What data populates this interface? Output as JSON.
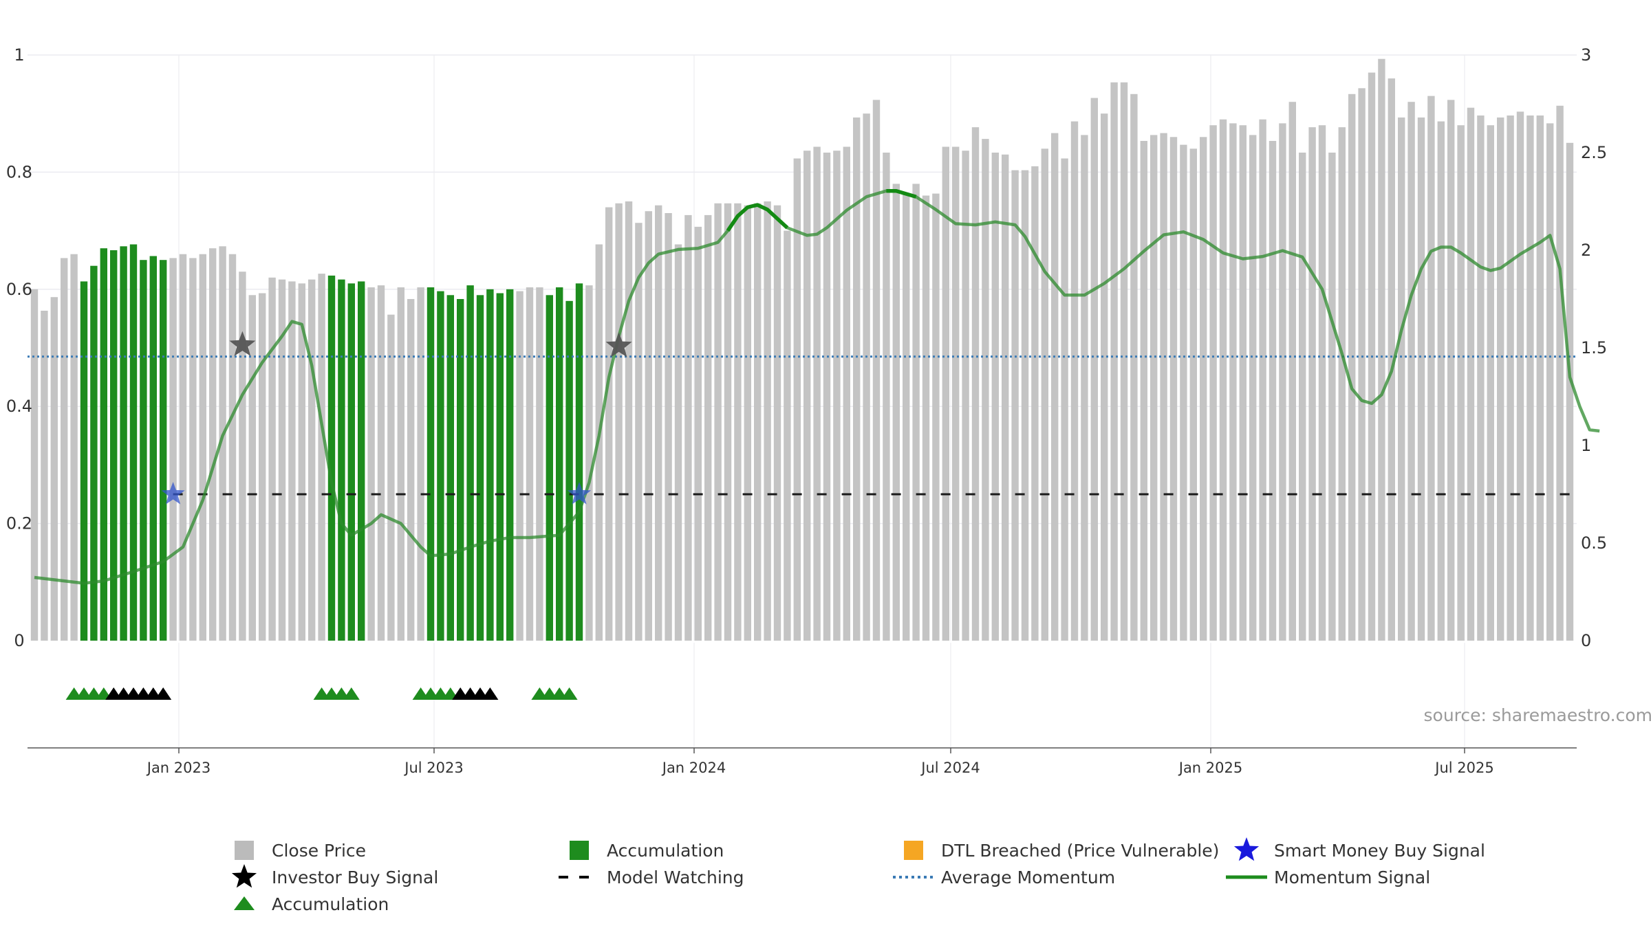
{
  "chart_data": {
    "type": "bar",
    "source_text": "source: sharemaestro.com",
    "left_axis": {
      "ylim": [
        0,
        1
      ],
      "ticks": [
        "0",
        "0.2",
        "0.4",
        "0.6",
        "0.8",
        "1"
      ]
    },
    "right_axis": {
      "ylim": [
        0,
        3
      ],
      "ticks": [
        "0",
        "0.5",
        "1",
        "1.5",
        "2",
        "2.5",
        "3"
      ]
    },
    "x_ticks": [
      "Jan 2023",
      "Jul 2023",
      "Jan 2024",
      "Jul 2024",
      "Jan 2025",
      "Jul 2025"
    ],
    "grid": true,
    "legend_placement": "bottom",
    "legend": [
      {
        "label": "Close Price",
        "marker": "gray-square",
        "color": "#bbbbbb"
      },
      {
        "label": "Accumulation",
        "marker": "green-square",
        "color": "#1e8c1e"
      },
      {
        "label": "DTL Breached (Price Vulnerable)",
        "marker": "orange-square",
        "color": "#f5a623"
      },
      {
        "label": "Smart Money Buy Signal",
        "marker": "blue-star",
        "color": "#1a1adc"
      },
      {
        "label": "Investor Buy Signal",
        "marker": "black-star",
        "color": "#000000"
      },
      {
        "label": "Model Watching",
        "marker": "dashed-line",
        "color": "#000000"
      },
      {
        "label": "Average Momentum",
        "marker": "dotted-line",
        "color": "#3a7ab5"
      },
      {
        "label": "Momentum Signal",
        "marker": "solid-line",
        "color": "#1e8c1e"
      },
      {
        "label": "Accumulation",
        "marker": "green-triangle",
        "color": "#1e8c1e"
      }
    ],
    "close_price": [
      1.8,
      1.69,
      1.76,
      1.96,
      1.98,
      1.84,
      1.92,
      2.01,
      2.0,
      2.02,
      2.03,
      1.95,
      1.97,
      1.95,
      1.96,
      1.98,
      1.96,
      1.98,
      2.01,
      2.02,
      1.98,
      1.89,
      1.77,
      1.78,
      1.86,
      1.85,
      1.84,
      1.83,
      1.85,
      1.88,
      1.87,
      1.85,
      1.83,
      1.84,
      1.81,
      1.82,
      1.67,
      1.81,
      1.75,
      1.81,
      1.81,
      1.79,
      1.77,
      1.75,
      1.82,
      1.77,
      1.8,
      1.78,
      1.8,
      1.79,
      1.81,
      1.81,
      1.77,
      1.81,
      1.74,
      1.83,
      1.82,
      2.03,
      2.22,
      2.24,
      2.25,
      2.14,
      2.2,
      2.23,
      2.19,
      2.03,
      2.18,
      2.12,
      2.18,
      2.24,
      2.24,
      2.24,
      2.23,
      2.24,
      2.25,
      2.23,
      2.1,
      2.47,
      2.51,
      2.53,
      2.5,
      2.51,
      2.53,
      2.68,
      2.7,
      2.77,
      2.5,
      2.34,
      2.29,
      2.34,
      2.28,
      2.29,
      2.53,
      2.53,
      2.51,
      2.63,
      2.57,
      2.5,
      2.49,
      2.41,
      2.41,
      2.43,
      2.52,
      2.6,
      2.47,
      2.66,
      2.59,
      2.78,
      2.7,
      2.86,
      2.86,
      2.8,
      2.56,
      2.59,
      2.6,
      2.58,
      2.54,
      2.52,
      2.58,
      2.64,
      2.67,
      2.65,
      2.64,
      2.59,
      2.67,
      2.56,
      2.65,
      2.76,
      2.5,
      2.63,
      2.64,
      2.5,
      2.63,
      2.8,
      2.83,
      2.91,
      2.98,
      2.88,
      2.68,
      2.76,
      2.68,
      2.79,
      2.66,
      2.77,
      2.64,
      2.73,
      2.69,
      2.64,
      2.68,
      2.69,
      2.71,
      2.69,
      2.69,
      2.65,
      2.74,
      2.55
    ],
    "accumulation_bars": [
      5,
      6,
      7,
      8,
      9,
      10,
      11,
      12,
      13,
      30,
      31,
      32,
      33,
      40,
      41,
      42,
      43,
      44,
      45,
      46,
      47,
      48,
      52,
      53,
      54,
      55
    ],
    "momentum": [
      [
        0,
        0.108
      ],
      [
        3,
        0.102
      ],
      [
        5,
        0.098
      ],
      [
        7,
        0.102
      ],
      [
        10,
        0.118
      ],
      [
        13,
        0.135
      ],
      [
        15,
        0.16
      ],
      [
        17,
        0.24
      ],
      [
        19,
        0.35
      ],
      [
        21,
        0.42
      ],
      [
        23,
        0.475
      ],
      [
        25,
        0.52
      ],
      [
        26,
        0.545
      ],
      [
        27,
        0.54
      ],
      [
        28,
        0.47
      ],
      [
        29,
        0.37
      ],
      [
        30,
        0.27
      ],
      [
        31,
        0.2
      ],
      [
        32,
        0.18
      ],
      [
        34,
        0.2
      ],
      [
        35,
        0.215
      ],
      [
        37,
        0.2
      ],
      [
        39,
        0.16
      ],
      [
        40,
        0.145
      ],
      [
        42,
        0.148
      ],
      [
        44,
        0.16
      ],
      [
        46,
        0.17
      ],
      [
        48,
        0.176
      ],
      [
        50,
        0.176
      ],
      [
        53,
        0.18
      ],
      [
        55,
        0.22
      ],
      [
        56,
        0.27
      ],
      [
        57,
        0.35
      ],
      [
        58,
        0.45
      ],
      [
        59,
        0.52
      ],
      [
        60,
        0.58
      ],
      [
        61,
        0.62
      ],
      [
        62,
        0.645
      ],
      [
        63,
        0.66
      ],
      [
        65,
        0.668
      ],
      [
        67,
        0.67
      ],
      [
        69,
        0.68
      ],
      [
        70,
        0.7
      ],
      [
        71,
        0.725
      ],
      [
        72,
        0.74
      ],
      [
        73,
        0.744
      ],
      [
        74,
        0.736
      ],
      [
        76,
        0.705
      ],
      [
        78,
        0.692
      ],
      [
        79,
        0.694
      ],
      [
        80,
        0.705
      ],
      [
        82,
        0.735
      ],
      [
        84,
        0.758
      ],
      [
        86,
        0.768
      ],
      [
        87,
        0.768
      ],
      [
        89,
        0.758
      ],
      [
        91,
        0.736
      ],
      [
        93,
        0.712
      ],
      [
        95,
        0.71
      ],
      [
        97,
        0.715
      ],
      [
        99,
        0.71
      ],
      [
        100,
        0.69
      ],
      [
        102,
        0.63
      ],
      [
        104,
        0.59
      ],
      [
        106,
        0.59
      ],
      [
        108,
        0.61
      ],
      [
        110,
        0.635
      ],
      [
        112,
        0.665
      ],
      [
        114,
        0.693
      ],
      [
        116,
        0.698
      ],
      [
        118,
        0.685
      ],
      [
        120,
        0.662
      ],
      [
        122,
        0.652
      ],
      [
        124,
        0.656
      ],
      [
        126,
        0.666
      ],
      [
        128,
        0.655
      ],
      [
        130,
        0.6
      ],
      [
        132,
        0.49
      ],
      [
        133,
        0.43
      ],
      [
        134,
        0.41
      ],
      [
        135,
        0.405
      ],
      [
        136,
        0.42
      ],
      [
        137,
        0.46
      ],
      [
        138,
        0.53
      ],
      [
        139,
        0.59
      ],
      [
        140,
        0.635
      ],
      [
        141,
        0.665
      ],
      [
        142,
        0.672
      ],
      [
        143,
        0.672
      ],
      [
        144,
        0.662
      ],
      [
        146,
        0.638
      ],
      [
        147,
        0.632
      ],
      [
        148,
        0.636
      ],
      [
        150,
        0.66
      ],
      [
        152,
        0.68
      ],
      [
        153,
        0.692
      ],
      [
        154,
        0.635
      ],
      [
        155,
        0.45
      ],
      [
        156,
        0.4
      ],
      [
        157,
        0.36
      ],
      [
        158,
        0.358
      ]
    ],
    "momentum_highlight_ranges": [
      [
        70,
        77
      ],
      [
        85,
        89
      ]
    ],
    "average_momentum": 0.485,
    "model_watching_level": 0.25,
    "model_watching_from": 14,
    "investor_buy_signals": [
      [
        21,
        0.505
      ],
      [
        59,
        0.503
      ]
    ],
    "smart_money_signals": [
      [
        14,
        0.25
      ],
      [
        55,
        0.25
      ]
    ],
    "accumulation_triangles": [
      {
        "x": 4,
        "color": "#1e8c1e"
      },
      {
        "x": 5,
        "color": "#1e8c1e"
      },
      {
        "x": 6,
        "color": "#1e8c1e"
      },
      {
        "x": 7,
        "color": "#1e8c1e"
      },
      {
        "x": 8,
        "color": "#000000"
      },
      {
        "x": 9,
        "color": "#000000"
      },
      {
        "x": 10,
        "color": "#000000"
      },
      {
        "x": 11,
        "color": "#000000"
      },
      {
        "x": 12,
        "color": "#000000"
      },
      {
        "x": 13,
        "color": "#000000"
      },
      {
        "x": 29,
        "color": "#1e8c1e"
      },
      {
        "x": 30,
        "color": "#1e8c1e"
      },
      {
        "x": 31,
        "color": "#1e8c1e"
      },
      {
        "x": 32,
        "color": "#1e8c1e"
      },
      {
        "x": 39,
        "color": "#1e8c1e"
      },
      {
        "x": 40,
        "color": "#1e8c1e"
      },
      {
        "x": 41,
        "color": "#1e8c1e"
      },
      {
        "x": 42,
        "color": "#1e8c1e"
      },
      {
        "x": 43,
        "color": "#000000"
      },
      {
        "x": 44,
        "color": "#000000"
      },
      {
        "x": 45,
        "color": "#000000"
      },
      {
        "x": 46,
        "color": "#000000"
      },
      {
        "x": 51,
        "color": "#1e8c1e"
      },
      {
        "x": 52,
        "color": "#1e8c1e"
      },
      {
        "x": 53,
        "color": "#1e8c1e"
      },
      {
        "x": 54,
        "color": "#1e8c1e"
      }
    ]
  }
}
